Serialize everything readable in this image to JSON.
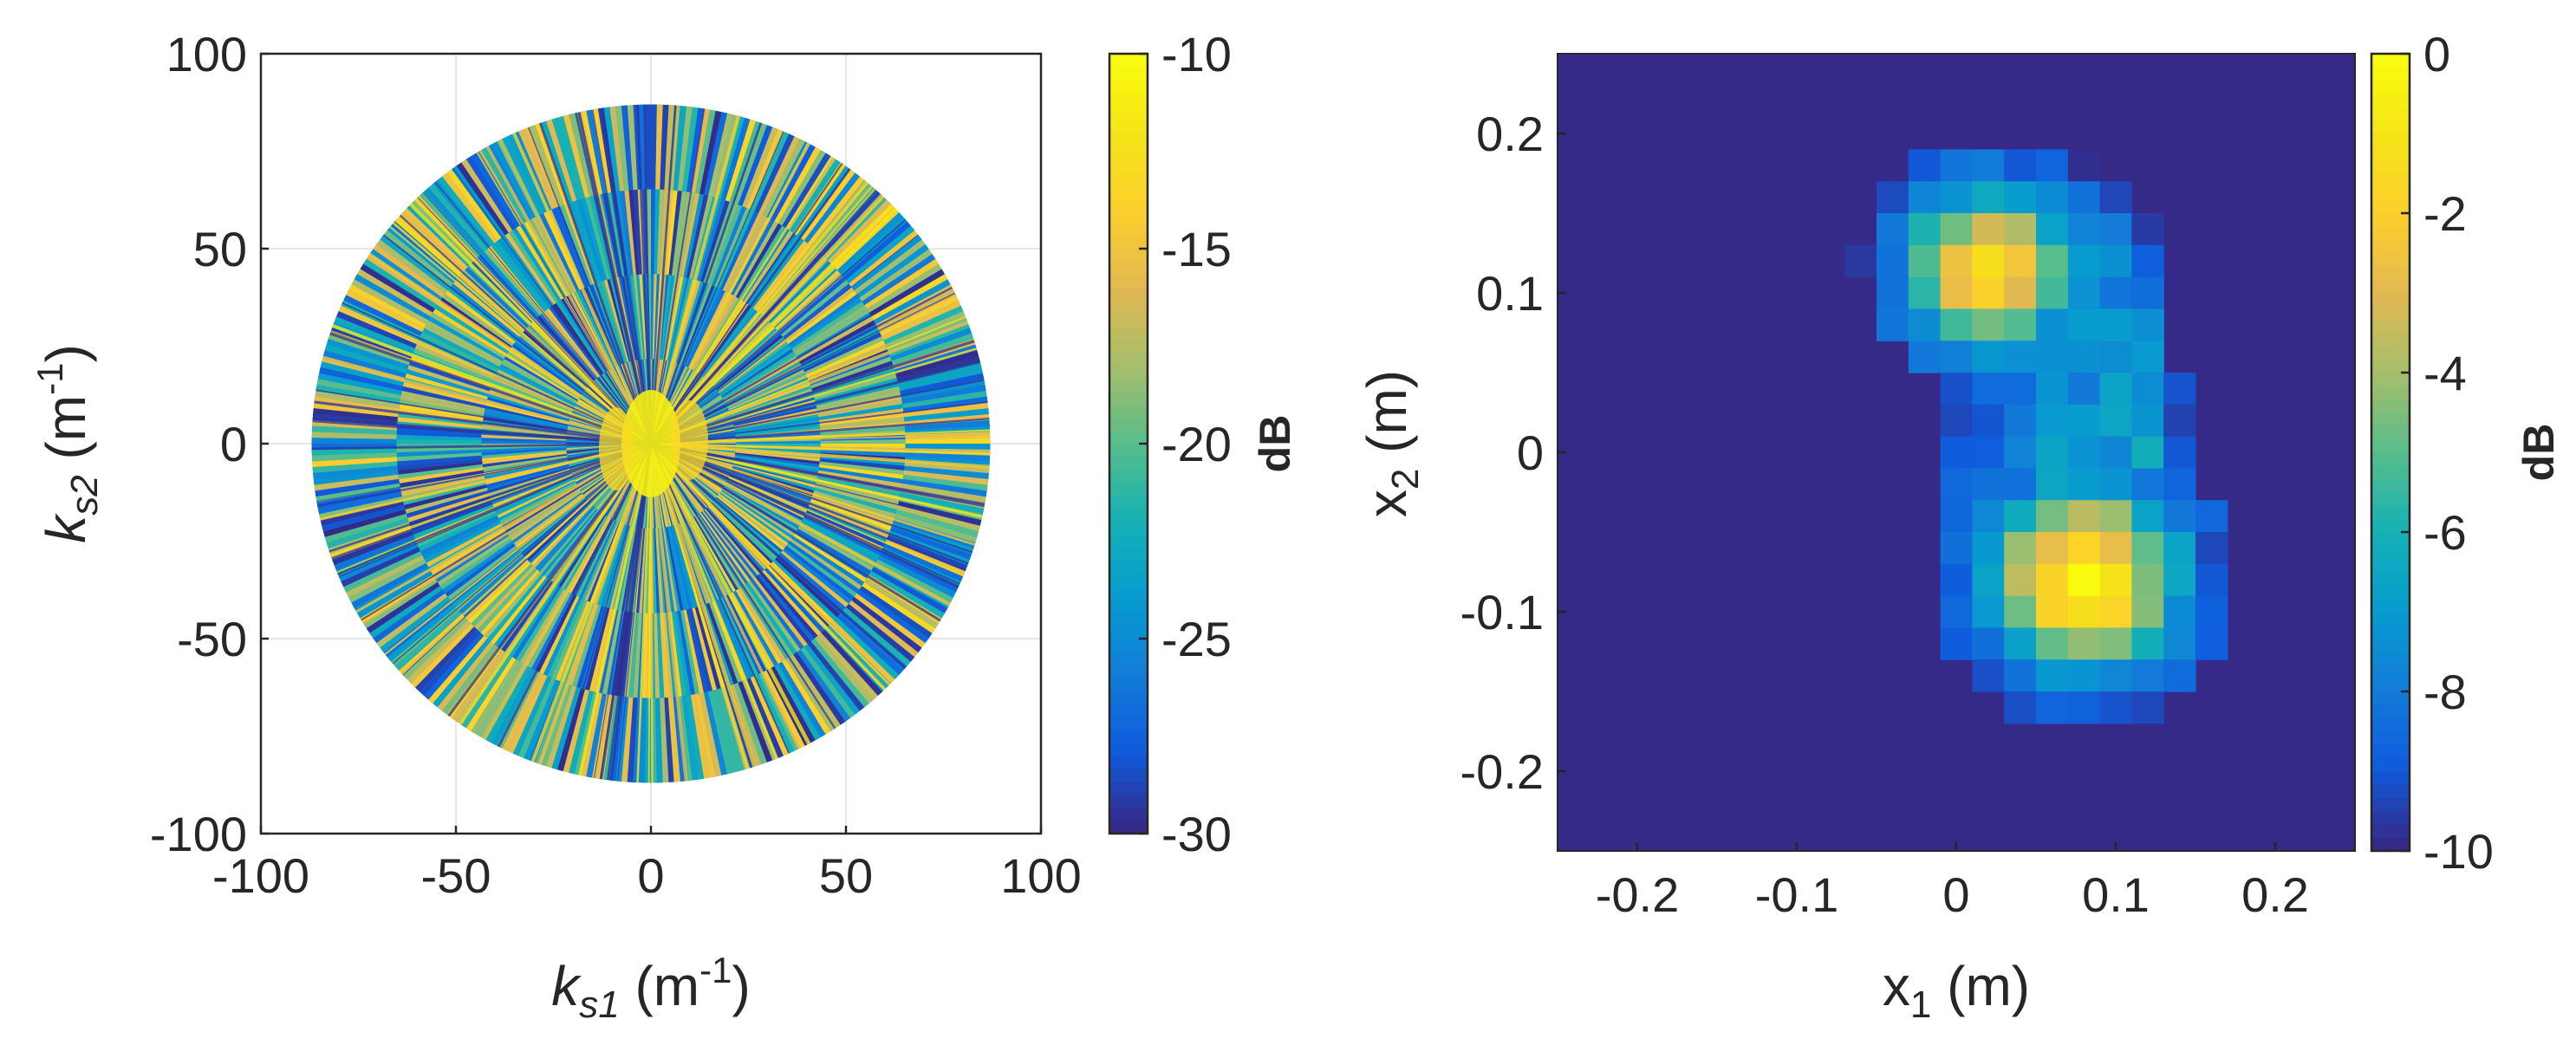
{
  "chart_data": [
    {
      "type": "heatmap",
      "subtype": "polar-spectrum",
      "xlabel": {
        "base": "k",
        "sub": "s1",
        "unit_pre": " (m",
        "sup": "-1",
        "unit_post": ")"
      },
      "ylabel": {
        "base": "k",
        "sub": "s2",
        "unit_pre": " (m",
        "sup": "-1",
        "unit_post": ")"
      },
      "xlim": [
        -100,
        100
      ],
      "ylim": [
        -100,
        100
      ],
      "xticks": [
        -100,
        -50,
        0,
        50,
        100
      ],
      "yticks": [
        -100,
        -50,
        0,
        50,
        100
      ],
      "xtick_labels": [
        "-100",
        "-50",
        "0",
        "50",
        "100"
      ],
      "ytick_labels": [
        "-100",
        "-50",
        "0",
        "50",
        "100"
      ],
      "grid": true,
      "disk_radius": 87,
      "colorbar": {
        "label": "dB",
        "range": [
          -30,
          -10
        ],
        "ticks": [
          -10,
          -15,
          -20,
          -25,
          -30
        ],
        "tick_labels": [
          "-10",
          "-15",
          "-20",
          "-25",
          "-30"
        ],
        "colormap": "parula"
      },
      "features": {
        "central_peak": {
          "center": [
            0,
            0
          ],
          "level_db": -11
        },
        "background_level_db": -24,
        "radial_streaks": true
      }
    },
    {
      "type": "heatmap",
      "xlabel": {
        "base": "x",
        "sub": "1",
        "unit": " (m)"
      },
      "ylabel": {
        "base": "x",
        "sub": "2",
        "unit": " (m)"
      },
      "xlim": [
        -0.25,
        0.25
      ],
      "ylim": [
        -0.25,
        0.25
      ],
      "xticks": [
        -0.2,
        -0.1,
        0,
        0.1,
        0.2
      ],
      "yticks": [
        0.2,
        0.1,
        0,
        -0.1,
        -0.2
      ],
      "xtick_labels": [
        "-0.2",
        "-0.1",
        "0",
        "0.1",
        "0.2"
      ],
      "ytick_labels": [
        "0.2",
        "0.1",
        "0",
        "-0.1",
        "-0.2"
      ],
      "grid": false,
      "pixel_size": 0.02,
      "background_db": -10,
      "colorbar": {
        "label": "dB",
        "range": [
          -10,
          0
        ],
        "ticks": [
          0,
          -2,
          -4,
          -6,
          -8,
          -10
        ],
        "tick_labels": [
          "0",
          "-2",
          "-4",
          "-6",
          "-8",
          "-10"
        ],
        "colormap": "parula"
      },
      "blobs": [
        {
          "center": [
            0.02,
            0.115
          ],
          "peak_db": -1.2,
          "sigma": 0.035
        },
        {
          "center": [
            0.08,
            -0.08
          ],
          "peak_db": 0,
          "sigma": 0.04
        },
        {
          "center": [
            0.07,
            0.0
          ],
          "peak_db": -7.5,
          "sigma": 0.05
        },
        {
          "center": [
            0.06,
            0.11
          ],
          "peak_db": -6.5,
          "sigma": 0.04
        }
      ]
    }
  ]
}
